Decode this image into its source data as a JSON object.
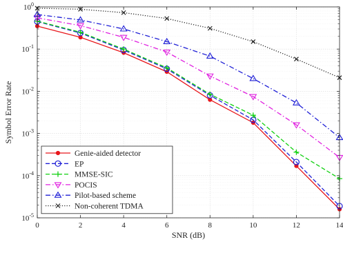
{
  "chart_data": {
    "type": "line",
    "title": "",
    "xlabel": "SNR (dB)",
    "ylabel": "Symbol Error Rate",
    "xlim": [
      0,
      14
    ],
    "ylim": [
      1e-05,
      1
    ],
    "y_scale": "log",
    "x_ticks": [
      0,
      2,
      4,
      6,
      8,
      10,
      12,
      14
    ],
    "y_ticks": [
      {
        "value": 1,
        "base": "10",
        "exp": "0"
      },
      {
        "value": 0.1,
        "base": "10",
        "exp": "-1"
      },
      {
        "value": 0.01,
        "base": "10",
        "exp": "-2"
      },
      {
        "value": 0.001,
        "base": "10",
        "exp": "-3"
      },
      {
        "value": 0.0001,
        "base": "10",
        "exp": "-4"
      },
      {
        "value": 1e-05,
        "base": "10",
        "exp": "-5"
      }
    ],
    "grid": true,
    "legend_position": "bottom-left",
    "x": [
      0,
      2,
      4,
      6,
      8,
      10,
      12,
      14
    ],
    "series": [
      {
        "name": "Genie-aided detector",
        "color": "#e8161b",
        "dash": "solid",
        "marker": "dot",
        "values": [
          0.35,
          0.19,
          0.082,
          0.029,
          0.0063,
          0.0018,
          0.00017,
          1.6e-05
        ]
      },
      {
        "name": "EP",
        "color": "#1f1fd6",
        "dash": "dashed",
        "marker": "circle",
        "values": [
          0.45,
          0.24,
          0.095,
          0.034,
          0.008,
          0.0021,
          0.00021,
          1.9e-05
        ]
      },
      {
        "name": "MMSE-SIC",
        "color": "#10d010",
        "dash": "dashed",
        "marker": "plus",
        "values": [
          0.46,
          0.25,
          0.1,
          0.036,
          0.0085,
          0.0027,
          0.00036,
          8.5e-05
        ]
      },
      {
        "name": "POCIS",
        "color": "#e020e0",
        "dash": "dashdot",
        "marker": "triangle-down",
        "values": [
          0.55,
          0.36,
          0.19,
          0.085,
          0.023,
          0.0075,
          0.0016,
          0.00027
        ]
      },
      {
        "name": "Pilot-based scheme",
        "color": "#1f1fd6",
        "dash": "dashdot",
        "marker": "triangle-up",
        "values": [
          0.66,
          0.49,
          0.3,
          0.15,
          0.068,
          0.02,
          0.0053,
          0.0008
        ]
      },
      {
        "name": "Non-coherent TDMA",
        "color": "#222222",
        "dash": "dotted",
        "marker": "x",
        "values": [
          0.93,
          0.88,
          0.73,
          0.53,
          0.31,
          0.15,
          0.058,
          0.021
        ]
      }
    ]
  }
}
